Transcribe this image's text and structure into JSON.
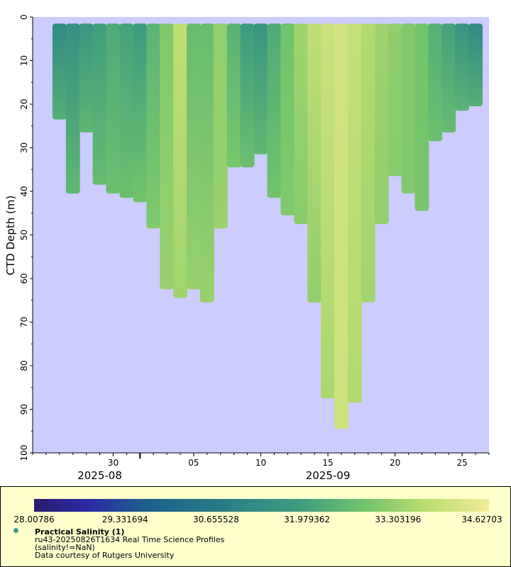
{
  "chart_data": {
    "type": "scatter",
    "subtype": "depth-time profile scatter (colored by salinity)",
    "ylabel": "CTD Depth (m)",
    "y_axis_inverted": true,
    "ylim": [
      0,
      100
    ],
    "yticks": [
      "0",
      "10",
      "20",
      "30",
      "40",
      "50",
      "60",
      "70",
      "80",
      "90",
      "100"
    ],
    "xlim": [
      "2025-08-24",
      "2025-09-27"
    ],
    "xticks": [
      "30",
      "05",
      "10",
      "15",
      "20",
      "25"
    ],
    "x_year_labels": [
      "2025-08",
      "2025-09"
    ],
    "colorbar": {
      "min": 28.00786,
      "max": 34.62703,
      "tick_labels": [
        "28.00786",
        "29.331694",
        "30.655528",
        "31.979362",
        "33.303196",
        "34.62703"
      ]
    },
    "legend_title": "Practical Salinity (1)",
    "legend_lines": [
      "ru43-20250826T1634 Real Time Science Profiles",
      "(salinity!=NaN)",
      "Data courtesy of Rutgers University"
    ],
    "colors": {
      "plot_background": "#ccccff",
      "legend_background": "#ffffcc",
      "marker": "#3e9a8b"
    },
    "grid": false,
    "series": [
      {
        "name": "Practical Salinity (1)",
        "columns": [
          "date",
          "max_depth_m",
          "surface_salinity",
          "bottom_salinity"
        ],
        "profiles": [
          [
            "2025-08-26",
            23,
            31.2,
            32.3
          ],
          [
            "2025-08-27",
            40,
            31.4,
            32.5
          ],
          [
            "2025-08-28",
            26,
            31.6,
            32.5
          ],
          [
            "2025-08-29",
            38,
            31.9,
            32.6
          ],
          [
            "2025-08-30",
            40,
            32.2,
            32.7
          ],
          [
            "2025-08-31",
            41,
            32.0,
            32.7
          ],
          [
            "2025-09-01",
            42,
            31.8,
            32.8
          ],
          [
            "2025-09-02",
            48,
            32.4,
            33.0
          ],
          [
            "2025-09-03",
            62,
            33.0,
            33.3
          ],
          [
            "2025-09-04",
            64,
            33.8,
            33.4
          ],
          [
            "2025-09-05",
            62,
            32.6,
            33.3
          ],
          [
            "2025-09-06",
            65,
            32.6,
            33.3
          ],
          [
            "2025-09-07",
            48,
            33.2,
            33.3
          ],
          [
            "2025-09-08",
            34,
            32.4,
            32.9
          ],
          [
            "2025-09-09",
            34,
            31.8,
            32.7
          ],
          [
            "2025-09-10",
            31,
            31.6,
            32.5
          ],
          [
            "2025-09-11",
            41,
            32.2,
            32.8
          ],
          [
            "2025-09-12",
            45,
            32.8,
            33.0
          ],
          [
            "2025-09-13",
            47,
            33.4,
            33.1
          ],
          [
            "2025-09-14",
            65,
            33.8,
            33.2
          ],
          [
            "2025-09-15",
            87,
            34.0,
            33.5
          ],
          [
            "2025-09-16",
            94,
            34.1,
            34.0
          ],
          [
            "2025-09-17",
            88,
            33.9,
            33.6
          ],
          [
            "2025-09-18",
            65,
            33.6,
            33.4
          ],
          [
            "2025-09-19",
            47,
            33.4,
            33.2
          ],
          [
            "2025-09-20",
            36,
            33.2,
            33.1
          ],
          [
            "2025-09-21",
            40,
            33.0,
            33.0
          ],
          [
            "2025-09-22",
            44,
            32.8,
            32.9
          ],
          [
            "2025-09-23",
            28,
            32.3,
            32.7
          ],
          [
            "2025-09-24",
            26,
            32.0,
            32.6
          ],
          [
            "2025-09-25",
            21,
            31.5,
            32.4
          ],
          [
            "2025-09-26",
            20,
            31.2,
            32.3
          ]
        ]
      }
    ]
  }
}
